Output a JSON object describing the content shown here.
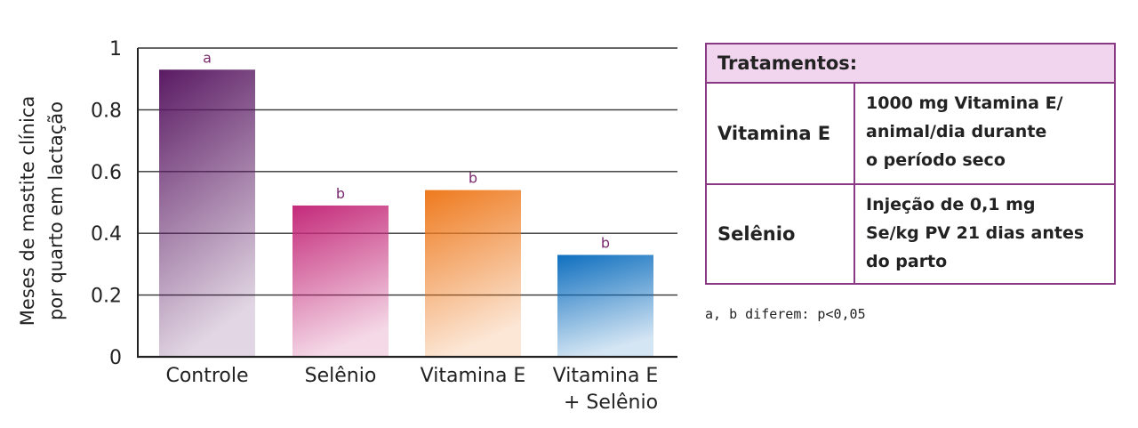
{
  "chart_data": {
    "type": "bar",
    "ylabel_lines": [
      "Meses de mastite clínica",
      "por quarto em lactação"
    ],
    "ylim": [
      0,
      1
    ],
    "yticks": [
      "0",
      "0.2",
      "0.4",
      "0.6",
      "0.8",
      "1"
    ],
    "ytick_values": [
      0,
      0.2,
      0.4,
      0.6,
      0.8,
      1
    ],
    "grid": true,
    "categories": [
      {
        "lines": [
          "Controle"
        ]
      },
      {
        "lines": [
          "Selênio"
        ]
      },
      {
        "lines": [
          "Vitamina E"
        ]
      },
      {
        "lines": [
          "Vitamina E",
          "+ Selênio"
        ]
      }
    ],
    "values": [
      0.93,
      0.49,
      0.54,
      0.33
    ],
    "significance": [
      "a",
      "b",
      "b",
      "b"
    ],
    "colors": [
      "#5a1a63",
      "#c42a7a",
      "#ee7a1e",
      "#0f6fbf"
    ]
  },
  "table": {
    "header": "Tratamentos:",
    "rows": [
      {
        "name": "Vitamina E",
        "desc": [
          "1000 mg Vitamina E/",
          "animal/dia durante",
          "o período seco"
        ]
      },
      {
        "name": "Selênio",
        "desc": [
          "Injeção de 0,1 mg",
          "Se/kg PV 21 dias antes",
          "do parto"
        ]
      }
    ]
  },
  "footnote": "a, b diferem: p<0,05"
}
